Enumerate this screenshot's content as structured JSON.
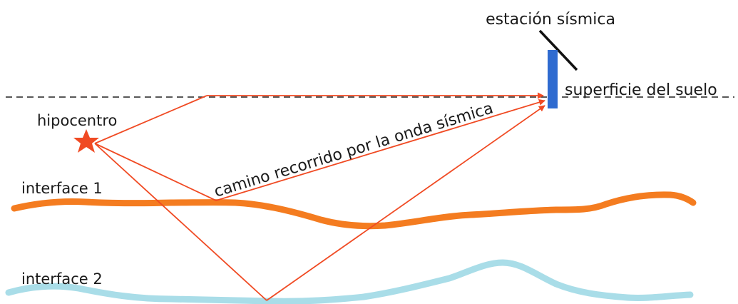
{
  "labels": {
    "station": "estación sísmica",
    "surface": "superficie del suelo",
    "hypocenter": "hipocentro",
    "wave_path": "camino recorrido por la onda sísmica",
    "interface_1": "interface 1",
    "interface_2": "interface 2"
  },
  "colors": {
    "ray": "#f04a23",
    "station": "#2f6bd0",
    "interface_1": "#f47c20",
    "interface_2": "#a9dde8",
    "ground_line": "#222222",
    "text": "#1a1a1a"
  },
  "icons": {
    "hypocenter": "star-icon",
    "station": "seismic-station-icon"
  }
}
